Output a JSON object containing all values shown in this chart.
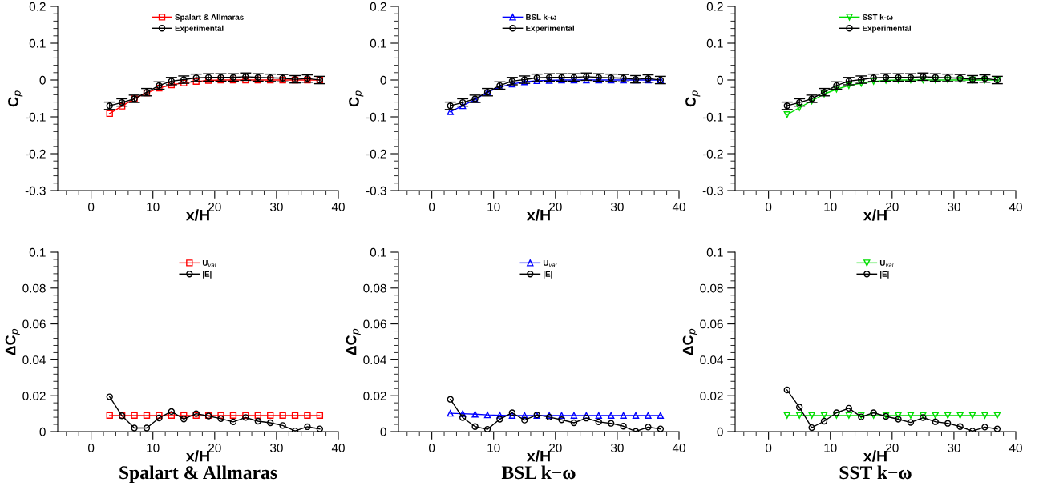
{
  "chart_data": [
    {
      "type": "line",
      "xlabel": "x/H",
      "ylabel": "C$_{p}$",
      "x": [
        3,
        5,
        7,
        9,
        11,
        13,
        15,
        17,
        19,
        21,
        23,
        25,
        27,
        29,
        31,
        33,
        35,
        37
      ],
      "xlim": [
        -5.4,
        40
      ],
      "xticks": [
        0,
        10,
        20,
        30,
        40
      ],
      "ylim": [
        -0.3,
        0.2
      ],
      "yticks": [
        {
          "value": -0.3,
          "label": "-0.3"
        },
        {
          "value": -0.2,
          "label": "-0.2"
        },
        {
          "value": -0.1,
          "label": "-0.1"
        },
        0,
        0.1,
        0.2
      ],
      "legend": "top",
      "grid": false,
      "series": [
        {
          "name": "Spalart & Allmaras",
          "color": "#ff0000",
          "marker": "square",
          "values": [
            -0.091,
            -0.071,
            -0.051,
            -0.035,
            -0.022,
            -0.013,
            -0.008,
            -0.004,
            -0.001,
            0,
            0,
            0,
            0,
            0,
            0,
            0,
            0,
            0
          ]
        },
        {
          "name": "Experimental",
          "color": "#000000",
          "marker": "circle",
          "values": [
            -0.07,
            -0.061,
            -0.051,
            -0.033,
            -0.015,
            -0.003,
            0.001,
            0.006,
            0.007,
            0.007,
            0.007,
            0.009,
            0.007,
            0.006,
            0.005,
            0.002,
            0.004,
            0
          ],
          "errors": [
            0.01,
            0.01,
            0.01,
            0.01,
            0.01,
            0.01,
            0.01,
            0.01,
            0.01,
            0.01,
            0.01,
            0.01,
            0.01,
            0.01,
            0.01,
            0.01,
            0.01,
            0.01
          ]
        }
      ]
    },
    {
      "type": "line",
      "xlabel": "x/H",
      "ylabel": "C$_{p}$",
      "x": [
        3,
        5,
        7,
        9,
        11,
        13,
        15,
        17,
        19,
        21,
        23,
        25,
        27,
        29,
        31,
        33,
        35,
        37
      ],
      "xlim": [
        -5.4,
        40
      ],
      "xticks": [
        0,
        10,
        20,
        30,
        40
      ],
      "ylim": [
        -0.3,
        0.2
      ],
      "yticks": [
        {
          "value": -0.3,
          "label": "-0.3"
        },
        {
          "value": -0.2,
          "label": "-0.2"
        },
        {
          "value": -0.1,
          "label": "-0.1"
        },
        0,
        0.1,
        0.2
      ],
      "legend": "top",
      "grid": false,
      "series": [
        {
          "name": "BSL k-ω",
          "color": "#0000ff",
          "marker": "triangle",
          "values": [
            -0.086,
            -0.07,
            -0.053,
            -0.033,
            -0.019,
            -0.011,
            -0.005,
            -0.002,
            -0.001,
            0,
            0,
            0,
            0,
            0,
            0,
            0,
            0,
            0
          ]
        },
        {
          "name": "Experimental",
          "color": "#000000",
          "marker": "circle",
          "values": [
            -0.07,
            -0.061,
            -0.051,
            -0.033,
            -0.015,
            -0.003,
            0.001,
            0.006,
            0.007,
            0.007,
            0.007,
            0.009,
            0.007,
            0.006,
            0.005,
            0.002,
            0.004,
            0
          ],
          "errors": [
            0.01,
            0.01,
            0.01,
            0.01,
            0.01,
            0.01,
            0.01,
            0.01,
            0.01,
            0.01,
            0.01,
            0.01,
            0.01,
            0.01,
            0.01,
            0.01,
            0.01,
            0.01
          ]
        }
      ]
    },
    {
      "type": "line",
      "xlabel": "x/H",
      "ylabel": "C$_{p}$",
      "x": [
        3,
        5,
        7,
        9,
        11,
        13,
        15,
        17,
        19,
        21,
        23,
        25,
        27,
        29,
        31,
        33,
        35,
        37
      ],
      "xlim": [
        -5.4,
        40
      ],
      "xticks": [
        0,
        10,
        20,
        30,
        40
      ],
      "ylim": [
        -0.3,
        0.2
      ],
      "yticks": [
        {
          "value": -0.3,
          "label": "-0.3"
        },
        {
          "value": -0.2,
          "label": "-0.2"
        },
        {
          "value": -0.1,
          "label": "-0.1"
        },
        0,
        0.1,
        0.2
      ],
      "legend": "top",
      "grid": false,
      "series": [
        {
          "name": "SST k-ω",
          "color": "#00dd00",
          "marker": "triangle_down",
          "values": [
            -0.094,
            -0.075,
            -0.057,
            -0.038,
            -0.025,
            -0.015,
            -0.009,
            -0.004,
            -0.001,
            0,
            0,
            0,
            0,
            0,
            0,
            0,
            0,
            0
          ]
        },
        {
          "name": "Experimental",
          "color": "#000000",
          "marker": "circle",
          "values": [
            -0.07,
            -0.061,
            -0.051,
            -0.033,
            -0.015,
            -0.003,
            0.001,
            0.006,
            0.007,
            0.007,
            0.007,
            0.009,
            0.007,
            0.006,
            0.005,
            0.002,
            0.004,
            0
          ],
          "errors": [
            0.01,
            0.01,
            0.01,
            0.01,
            0.01,
            0.01,
            0.01,
            0.01,
            0.01,
            0.01,
            0.01,
            0.01,
            0.01,
            0.01,
            0.01,
            0.01,
            0.01,
            0.01
          ]
        }
      ]
    },
    {
      "type": "line",
      "xlabel": "x/H",
      "ylabel": "ΔC$_{p}$",
      "x": [
        3,
        5,
        7,
        9,
        11,
        13,
        15,
        17,
        19,
        21,
        23,
        25,
        27,
        29,
        31,
        33,
        35,
        37
      ],
      "xlim": [
        -5.4,
        40
      ],
      "xticks": [
        0,
        10,
        20,
        30,
        40
      ],
      "ylim": [
        0,
        0.1
      ],
      "yticks": [
        0,
        0.02,
        0.04,
        0.06,
        0.08,
        0.1
      ],
      "legend": "top",
      "grid": false,
      "annotations": [
        "Spalart & Allmaras"
      ],
      "series": [
        {
          "name": "U$_{val}$",
          "color": "#ff0000",
          "marker": "square",
          "values": [
            0.009,
            0.009,
            0.009,
            0.009,
            0.009,
            0.009,
            0.009,
            0.009,
            0.009,
            0.009,
            0.009,
            0.009,
            0.009,
            0.009,
            0.009,
            0.009,
            0.009,
            0.009
          ]
        },
        {
          "name": "|E|",
          "color": "#000000",
          "marker": "circle",
          "values": [
            0.0194,
            0.0088,
            0.002,
            0.002,
            0.0076,
            0.0112,
            0.007,
            0.01,
            0.0087,
            0.0072,
            0.0054,
            0.0079,
            0.0058,
            0.0049,
            0.0034,
            0.0004,
            0.0027,
            0.0015
          ]
        }
      ]
    },
    {
      "type": "line",
      "xlabel": "x/H",
      "ylabel": "ΔC$_{p}$",
      "x": [
        3,
        5,
        7,
        9,
        11,
        13,
        15,
        17,
        19,
        21,
        23,
        25,
        27,
        29,
        31,
        33,
        35,
        37
      ],
      "xlim": [
        -5.4,
        40
      ],
      "xticks": [
        0,
        10,
        20,
        30,
        40
      ],
      "ylim": [
        0,
        0.1
      ],
      "yticks": [
        0,
        0.02,
        0.04,
        0.06,
        0.08,
        0.1
      ],
      "legend": "top",
      "grid": false,
      "annotations": [
        "BSL k−ω"
      ],
      "series": [
        {
          "name": "U$_{val}$",
          "color": "#0000ff",
          "marker": "triangle",
          "values": [
            0.0102,
            0.01,
            0.0097,
            0.0093,
            0.0091,
            0.009,
            0.009,
            0.009,
            0.009,
            0.009,
            0.009,
            0.009,
            0.009,
            0.009,
            0.009,
            0.009,
            0.009,
            0.009
          ]
        },
        {
          "name": "|E|",
          "color": "#000000",
          "marker": "circle",
          "values": [
            0.018,
            0.0078,
            0.0028,
            0.0013,
            0.0069,
            0.0105,
            0.0064,
            0.0093,
            0.0081,
            0.0066,
            0.0049,
            0.0075,
            0.0054,
            0.0046,
            0.003,
            0.0001,
            0.0025,
            0.0015
          ]
        }
      ]
    },
    {
      "type": "line",
      "xlabel": "x/H",
      "ylabel": "ΔC$_{p}$",
      "x": [
        3,
        5,
        7,
        9,
        11,
        13,
        15,
        17,
        19,
        21,
        23,
        25,
        27,
        29,
        31,
        33,
        35,
        37
      ],
      "xlim": [
        -5.4,
        40
      ],
      "xticks": [
        0,
        10,
        20,
        30,
        40
      ],
      "ylim": [
        0,
        0.1
      ],
      "yticks": [
        0,
        0.02,
        0.04,
        0.06,
        0.08,
        0.1
      ],
      "legend": "top",
      "grid": false,
      "annotations": [
        "SST k−ω"
      ],
      "series": [
        {
          "name": "U$_{val}$",
          "color": "#00dd00",
          "marker": "triangle_down",
          "values": [
            0.009,
            0.009,
            0.009,
            0.009,
            0.009,
            0.009,
            0.009,
            0.009,
            0.009,
            0.009,
            0.009,
            0.009,
            0.009,
            0.009,
            0.009,
            0.009,
            0.009,
            0.009
          ]
        },
        {
          "name": "|E|",
          "color": "#000000",
          "marker": "circle",
          "values": [
            0.0232,
            0.0136,
            0.0022,
            0.0058,
            0.0105,
            0.013,
            0.0082,
            0.0105,
            0.0085,
            0.0069,
            0.0051,
            0.0078,
            0.0055,
            0.0046,
            0.0028,
            0.0003,
            0.0025,
            0.0015
          ]
        }
      ]
    }
  ]
}
